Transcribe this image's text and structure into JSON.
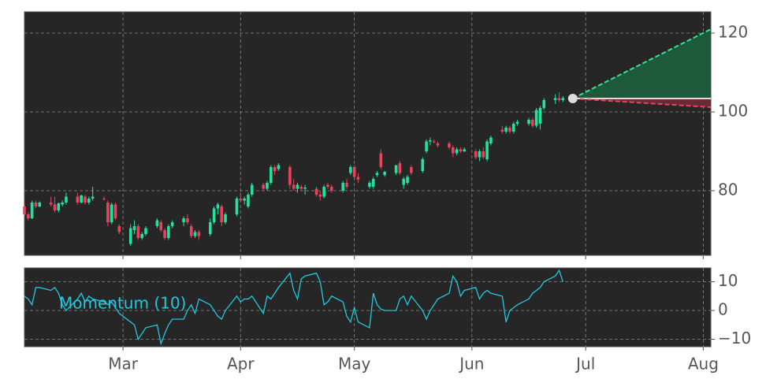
{
  "chart_data": [
    {
      "type": "candlestick",
      "x": [
        0,
        1,
        2,
        3,
        4,
        7,
        8,
        9,
        10,
        11,
        14,
        15,
        16,
        17,
        18,
        21,
        22,
        23,
        24,
        25,
        28,
        29,
        30,
        31,
        32,
        35,
        36,
        37,
        38,
        39,
        42,
        43,
        44,
        45,
        46,
        49,
        50,
        51,
        52,
        53,
        56,
        57,
        58,
        59,
        60,
        63,
        64,
        65,
        66,
        67,
        70,
        71,
        72,
        73,
        74,
        77,
        78,
        79,
        80,
        81,
        84,
        85,
        86,
        87,
        88,
        91,
        92,
        93,
        94,
        95,
        98,
        99,
        100,
        101,
        102,
        105,
        106,
        107,
        108,
        109,
        112,
        113,
        114,
        115,
        116,
        119,
        120,
        121,
        122,
        123,
        126,
        127,
        128,
        129,
        130,
        133,
        134,
        135,
        136,
        137,
        140,
        141,
        142
      ],
      "open": [
        76,
        74,
        73,
        77,
        76,
        77,
        76.5,
        75,
        76.5,
        77,
        78.5,
        77,
        78.5,
        77,
        78,
        78,
        77,
        72,
        76.5,
        71,
        66.5,
        70,
        71,
        68,
        69,
        71,
        72,
        70,
        68,
        71,
        72,
        73,
        71,
        68.5,
        69.5,
        69,
        72,
        75.5,
        76,
        72,
        74,
        78,
        77.5,
        76,
        79,
        81.5,
        80.5,
        82,
        86,
        85.5,
        86,
        81.5,
        80.5,
        81,
        80.5,
        80.5,
        79,
        78.5,
        81.5,
        81,
        80,
        82,
        84.5,
        86,
        83.5,
        81,
        81,
        84,
        89.5,
        84,
        84.5,
        87,
        81.5,
        82,
        86,
        85,
        90,
        92.5,
        92.5,
        92,
        92,
        91,
        89.5,
        90.5,
        90,
        90,
        88.5,
        90,
        88,
        92,
        95.5,
        95,
        96,
        95,
        97,
        97,
        98,
        96.5,
        97,
        101,
        103,
        103.5,
        103
      ],
      "high": [
        76.5,
        74.5,
        77.5,
        77.5,
        77.3,
        78.5,
        78.5,
        77,
        77.5,
        79.5,
        79.5,
        79,
        79,
        78.5,
        81,
        78.5,
        77.5,
        77,
        77,
        71.5,
        71.5,
        72.5,
        71.5,
        69.5,
        71,
        73,
        72.5,
        70.5,
        71.5,
        72.5,
        73.5,
        74,
        71.5,
        70,
        70,
        73,
        76,
        77,
        76.5,
        74.5,
        78.5,
        79.5,
        78.5,
        79.5,
        82,
        82,
        82.5,
        86.5,
        86.5,
        87,
        86.5,
        83,
        82,
        81.5,
        81.5,
        81,
        80,
        81.5,
        82,
        81.5,
        82.5,
        83,
        86.5,
        86.5,
        84.5,
        82.5,
        83.5,
        85,
        90.5,
        85,
        86.5,
        87.5,
        83.5,
        84,
        86.5,
        88.5,
        93,
        93.5,
        93,
        92.5,
        92.5,
        91.5,
        91,
        91,
        91,
        90.5,
        90.5,
        91,
        93,
        94,
        96.5,
        96.5,
        96.5,
        97.5,
        98,
        98.5,
        98.5,
        101,
        101.5,
        103.5,
        104.5,
        105,
        104
      ],
      "low": [
        73.5,
        72.5,
        72.8,
        75.5,
        75.8,
        76,
        74.5,
        74.5,
        76,
        76.5,
        76.5,
        76.8,
        76.5,
        76.5,
        77.5,
        77.5,
        71,
        71.5,
        72.5,
        69,
        66,
        69,
        67.5,
        67.5,
        68.5,
        70.5,
        69.5,
        67.5,
        67.5,
        70.5,
        71,
        71.5,
        68,
        68,
        67.5,
        68.5,
        71.5,
        74,
        71,
        71.5,
        73.5,
        77,
        76.5,
        75.5,
        78.5,
        80,
        80,
        81.5,
        84,
        85,
        80.5,
        80,
        79.5,
        80,
        79,
        78.5,
        77.5,
        78,
        80.5,
        79.5,
        79.5,
        80.5,
        84,
        83,
        82,
        80.5,
        80.5,
        83.5,
        85.5,
        83.5,
        84,
        84,
        80.5,
        81.5,
        84,
        84.5,
        89.5,
        91.5,
        92,
        91,
        90.5,
        88.5,
        89,
        89.5,
        89.8,
        88,
        87.5,
        88,
        87.5,
        91.5,
        94.5,
        94.5,
        94.5,
        94.5,
        96.5,
        96.5,
        96,
        96,
        95.5,
        100.5,
        102,
        102.5,
        102.5
      ],
      "close": [
        74,
        73,
        77,
        76,
        77,
        76.5,
        75,
        76.8,
        77,
        78.5,
        77,
        78.8,
        77,
        78,
        78.5,
        77.8,
        72,
        76.5,
        73,
        69.5,
        70.5,
        71,
        68,
        69,
        70.5,
        72.5,
        70,
        68,
        71,
        72,
        73,
        72,
        68.5,
        69.5,
        68.5,
        72,
        75.5,
        76.5,
        72,
        74,
        78,
        77.5,
        78,
        79,
        81.5,
        80.5,
        82,
        86,
        85,
        86.5,
        81.5,
        80.5,
        81.5,
        80.5,
        80.8,
        79,
        78.5,
        81,
        81,
        80,
        82,
        81,
        86,
        83.5,
        82.8,
        82,
        83,
        84.5,
        86,
        84.8,
        86.5,
        84.5,
        83,
        83.5,
        84.5,
        88,
        92.5,
        92.8,
        92.3,
        91.5,
        91,
        89.5,
        90.5,
        90,
        90.5,
        88.5,
        90,
        88.5,
        92.5,
        93.5,
        95,
        96,
        95,
        97,
        97.5,
        98,
        96.5,
        100.5,
        101,
        103,
        103.5,
        103,
        103.5
      ],
      "up_color": "#22e39e",
      "down_color": "#e8435e",
      "xlim": [
        0,
        181
      ],
      "ylim": [
        63.6,
        125.4
      ],
      "yticks": [
        80,
        100,
        120
      ],
      "grid": true,
      "forecast": {
        "x": [
          144.6,
          181
        ],
        "upper": [
          103.4,
          121
        ],
        "center": [
          103.4,
          103.4
        ],
        "lower": [
          103.4,
          101.2
        ],
        "upper_color": "#2ee59d",
        "upper_fill": "#1d5a3c",
        "center_color": "#dddddd",
        "lower_color": "#e8435e",
        "lower_fill": "#6a2a35",
        "marker_color": "#dddddd"
      }
    },
    {
      "type": "line",
      "x": [
        0,
        1,
        2,
        3,
        4,
        7,
        8,
        9,
        10,
        11,
        14,
        15,
        16,
        17,
        18,
        21,
        22,
        23,
        24,
        25,
        28,
        29,
        30,
        31,
        32,
        35,
        36,
        37,
        38,
        39,
        42,
        43,
        44,
        45,
        46,
        49,
        50,
        51,
        52,
        53,
        56,
        57,
        58,
        59,
        60,
        63,
        64,
        65,
        66,
        67,
        70,
        71,
        72,
        73,
        74,
        77,
        78,
        79,
        80,
        81,
        84,
        85,
        86,
        87,
        88,
        91,
        92,
        93,
        94,
        95,
        98,
        99,
        100,
        101,
        102,
        105,
        106,
        107,
        108,
        109,
        112,
        113,
        114,
        115,
        116,
        119,
        120,
        121,
        122,
        123,
        126,
        127,
        128,
        129,
        130,
        133,
        134,
        135,
        136,
        137,
        140,
        141,
        142
      ],
      "series": [
        {
          "name": "Momentum (10)",
          "color": "#22c8e0",
          "values": [
            5,
            4,
            2,
            8,
            8,
            7,
            8,
            6,
            2,
            0,
            4,
            6,
            3,
            5,
            4,
            3,
            2,
            3,
            1,
            -1,
            -4,
            -5,
            -10,
            -8,
            -6,
            -5,
            -11.5,
            -8,
            -5,
            -3,
            -3,
            0,
            2,
            -1,
            4,
            2,
            0,
            -2,
            -3,
            0,
            5,
            3,
            4,
            4,
            5,
            -1,
            5,
            4,
            6,
            8,
            13,
            7,
            4,
            11,
            12,
            13,
            10,
            2,
            3,
            5,
            3,
            -2,
            -4,
            1,
            -4,
            -6,
            6,
            2,
            0.5,
            0,
            0,
            4,
            5,
            2,
            5,
            0,
            -3,
            0,
            2,
            4,
            6,
            12,
            10,
            5,
            7,
            8,
            4,
            6,
            7,
            6,
            5,
            -4,
            0,
            1,
            2,
            4,
            6,
            7,
            8,
            10,
            12,
            14,
            10
          ]
        }
      ],
      "xlim": [
        0,
        181
      ],
      "ylim": [
        -12.6,
        14.8
      ],
      "yticks": [
        {
          "value": -10,
          "label": "−10"
        },
        0,
        10
      ],
      "xticks": [
        {
          "value": 26,
          "label": "Mar"
        },
        {
          "value": 57,
          "label": "Apr"
        },
        {
          "value": 87,
          "label": "May"
        },
        {
          "value": 118,
          "label": "Jun"
        },
        {
          "value": 148,
          "label": "Jul"
        },
        {
          "value": 179,
          "label": "Aug"
        }
      ],
      "grid": true
    }
  ]
}
